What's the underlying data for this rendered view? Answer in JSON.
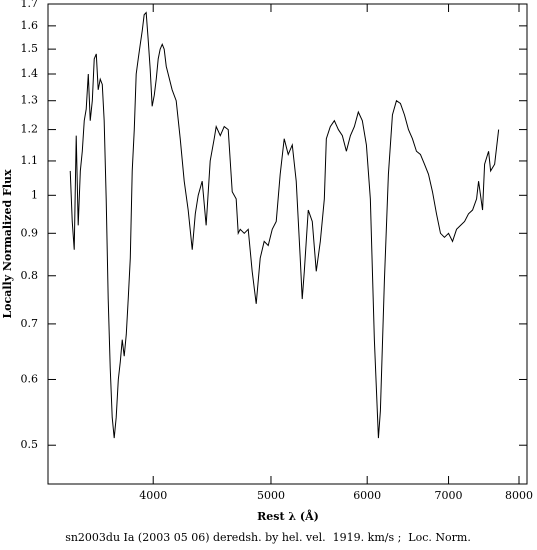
{
  "chart_data": {
    "type": "line",
    "caption": "sn2003du Ia (2003 05 06) deredsh. by hel. vel.  1919. km/s ;  Loc. Norm.",
    "xlabel": "Rest λ (Å)",
    "ylabel": "Locally Normalized Flux",
    "xscale": "log",
    "yscale": "log",
    "color": "#000000",
    "xlim": [
      3277,
      8122
    ],
    "ylim": [
      0.449,
      1.7
    ],
    "xticks": [
      4000,
      5000,
      6000,
      7000,
      8000
    ],
    "yticks": [
      0.5,
      0.6,
      0.7,
      0.8,
      0.9,
      1,
      1.1,
      1.2,
      1.3,
      1.4,
      1.5,
      1.6,
      1.7
    ],
    "x": [
      3418,
      3431,
      3444,
      3457,
      3470,
      3484,
      3497,
      3510,
      3523,
      3537,
      3550,
      3564,
      3577,
      3591,
      3604,
      3618,
      3632,
      3645,
      3659,
      3673,
      3687,
      3701,
      3715,
      3729,
      3744,
      3758,
      3772,
      3786,
      3801,
      3815,
      3830,
      3844,
      3859,
      3873,
      3888,
      3903,
      3918,
      3932,
      3947,
      3962,
      3977,
      3992,
      4008,
      4023,
      4038,
      4053,
      4069,
      4084,
      4100,
      4115,
      4146,
      4178,
      4210,
      4242,
      4274,
      4307,
      4332,
      4356,
      4389,
      4422,
      4456,
      4490,
      4507,
      4542,
      4576,
      4611,
      4646,
      4681,
      4699,
      4717,
      4753,
      4789,
      4825,
      4862,
      4899,
      4936,
      4974,
      5012,
      5050,
      5088,
      5127,
      5166,
      5206,
      5245,
      5285,
      5305,
      5326,
      5366,
      5407,
      5448,
      5490,
      5532,
      5553,
      5595,
      5638,
      5681,
      5724,
      5768,
      5812,
      5856,
      5900,
      5945,
      5991,
      6036,
      6082,
      6129,
      6152,
      6199,
      6246,
      6294,
      6342,
      6390,
      6439,
      6488,
      6537,
      6587,
      6637,
      6688,
      6739,
      6790,
      6842,
      6894,
      6946,
      7000,
      7053,
      7107,
      7161,
      7216,
      7270,
      7326,
      7382,
      7410,
      7466,
      7495,
      7552,
      7581,
      7639,
      7697
    ],
    "y": [
      1.07,
      0.93,
      0.86,
      1.18,
      0.92,
      1.07,
      1.13,
      1.23,
      1.27,
      1.4,
      1.23,
      1.3,
      1.46,
      1.48,
      1.34,
      1.38,
      1.36,
      1.23,
      0.99,
      0.75,
      0.62,
      0.54,
      0.51,
      0.54,
      0.6,
      0.63,
      0.67,
      0.64,
      0.68,
      0.75,
      0.84,
      1.07,
      1.2,
      1.4,
      1.46,
      1.52,
      1.58,
      1.65,
      1.66,
      1.54,
      1.42,
      1.28,
      1.32,
      1.38,
      1.46,
      1.5,
      1.52,
      1.5,
      1.43,
      1.4,
      1.34,
      1.3,
      1.17,
      1.04,
      0.96,
      0.86,
      0.95,
      1.0,
      1.04,
      0.92,
      1.1,
      1.17,
      1.21,
      1.18,
      1.21,
      1.2,
      1.01,
      0.99,
      0.9,
      0.91,
      0.9,
      0.91,
      0.81,
      0.74,
      0.84,
      0.88,
      0.87,
      0.91,
      0.93,
      1.06,
      1.17,
      1.12,
      1.15,
      1.04,
      0.84,
      0.75,
      0.81,
      0.96,
      0.93,
      0.81,
      0.88,
      0.99,
      1.17,
      1.21,
      1.23,
      1.2,
      1.18,
      1.13,
      1.18,
      1.21,
      1.26,
      1.23,
      1.15,
      0.99,
      0.67,
      0.51,
      0.55,
      0.79,
      1.06,
      1.25,
      1.3,
      1.29,
      1.25,
      1.2,
      1.17,
      1.13,
      1.12,
      1.09,
      1.06,
      1.01,
      0.95,
      0.9,
      0.89,
      0.9,
      0.88,
      0.91,
      0.92,
      0.93,
      0.95,
      0.96,
      0.99,
      1.04,
      0.96,
      1.09,
      1.13,
      1.07,
      1.09,
      1.2
    ]
  }
}
